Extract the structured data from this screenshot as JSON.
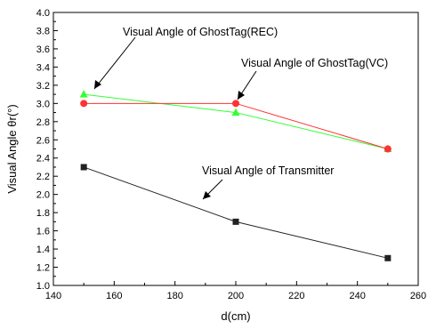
{
  "chart_data": {
    "type": "line",
    "xlabel": "d(cm)",
    "ylabel": "Visual Angle θr(°)",
    "xlim": [
      140,
      260
    ],
    "ylim": [
      1.0,
      4.0
    ],
    "x_ticks": [
      "140",
      "160",
      "180",
      "200",
      "220",
      "240",
      "260"
    ],
    "y_ticks": [
      "1.0",
      "1.2",
      "1.4",
      "1.6",
      "1.8",
      "2.0",
      "2.2",
      "2.4",
      "2.6",
      "2.8",
      "3.0",
      "3.2",
      "3.4",
      "3.6",
      "3.8",
      "4.0"
    ],
    "series": [
      {
        "name": "Visual Angle of GhostTag(REC)",
        "x": [
          150,
          200,
          250
        ],
        "y": [
          3.1,
          2.9,
          2.5
        ],
        "color": "#33ff33",
        "marker": "triangle"
      },
      {
        "name": "Visual Angle of GhostTag(VC)",
        "x": [
          150,
          200,
          250
        ],
        "y": [
          3.0,
          3.0,
          2.5
        ],
        "color": "#ff3333",
        "marker": "circle"
      },
      {
        "name": "Visual Angle of Transmitter",
        "x": [
          150,
          200,
          250
        ],
        "y": [
          2.3,
          1.7,
          1.3
        ],
        "color": "#222222",
        "marker": "square"
      }
    ]
  }
}
